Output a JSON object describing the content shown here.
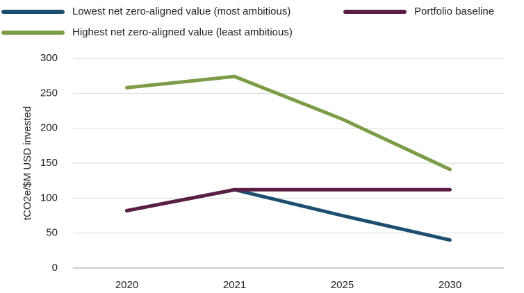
{
  "chart_data": {
    "type": "line",
    "y_label": "tCO2e/$M USD invested",
    "categories": [
      "2020",
      "2021",
      "2025",
      "2030"
    ],
    "series": [
      {
        "name": "Lowest net zero-aligned value (most ambitious)",
        "color": "#1d4e6f",
        "values": [
          82,
          112,
          75,
          40
        ]
      },
      {
        "name": "Portfolio baseline",
        "color": "#5b1e44",
        "values": [
          82,
          112,
          112,
          112
        ]
      },
      {
        "name": "Highest net zero-aligned value (least ambitious)",
        "color": "#7c9c47",
        "values": [
          258,
          274,
          213,
          141
        ]
      }
    ],
    "ylim": [
      0,
      300
    ],
    "yticks": [
      0,
      50,
      100,
      150,
      200,
      250,
      300
    ],
    "grid": true,
    "legend": "top"
  }
}
